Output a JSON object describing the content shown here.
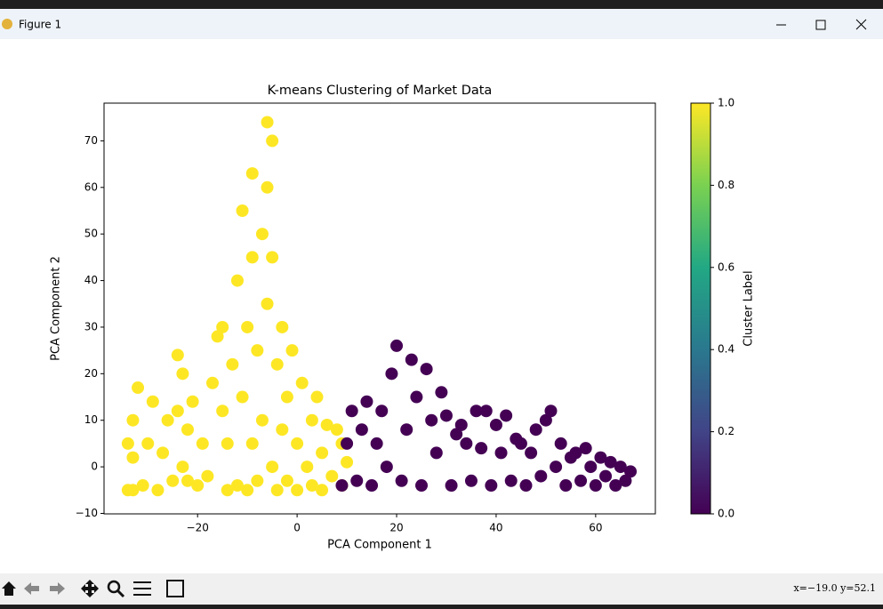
{
  "window": {
    "title": "Figure 1",
    "coordinates": "x=−19.0 y=52.1"
  },
  "chart_data": {
    "type": "scatter",
    "title": "K-means Clustering of Market Data",
    "x_label": "PCA Component 1",
    "y_label": "PCA Component 2",
    "xlim": [
      -38.8,
      72
    ],
    "ylim": [
      -10.1,
      78.1
    ],
    "xticks": [
      {
        "value": -20,
        "label": "−20"
      },
      0,
      20,
      40,
      60
    ],
    "yticks": [
      {
        "value": -10,
        "label": "−10"
      },
      0,
      10,
      20,
      30,
      40,
      50,
      60,
      70
    ],
    "series": [
      {
        "color": "#fde725",
        "x": [
          -34,
          -34,
          -33,
          -33,
          -33,
          -32,
          -31,
          -30,
          -29,
          -28,
          -27,
          -26,
          -25,
          -24,
          -24,
          -23,
          -23,
          -22,
          -22,
          -21,
          -20,
          -19,
          -18,
          -17,
          -16,
          -15,
          -15,
          -14,
          -14,
          -13,
          -12,
          -12,
          -11,
          -11,
          -10,
          -10,
          -9,
          -9,
          -9,
          -8,
          -8,
          -7,
          -7,
          -6,
          -6,
          -6,
          -5,
          -5,
          -5,
          -4,
          -4,
          -3,
          -3,
          -2,
          -2,
          -1,
          0,
          0,
          1,
          2,
          3,
          3,
          4,
          5,
          5,
          6,
          7,
          8,
          9,
          9,
          10
        ],
        "values": [
          -5,
          5,
          -5,
          2,
          10,
          17,
          -4,
          5,
          14,
          -5,
          3,
          10,
          -3,
          24,
          12,
          20,
          0,
          -3,
          8,
          14,
          -4,
          5,
          -2,
          18,
          28,
          30,
          12,
          -5,
          5,
          22,
          40,
          -4,
          55,
          15,
          30,
          -5,
          63,
          45,
          5,
          25,
          -3,
          50,
          10,
          74,
          60,
          35,
          70,
          45,
          0,
          22,
          -5,
          30,
          8,
          15,
          -3,
          25,
          5,
          -5,
          18,
          0,
          10,
          -4,
          15,
          3,
          -5,
          9,
          -2,
          8,
          -4,
          5,
          1
        ]
      },
      {
        "color": "#440154",
        "x": [
          9,
          10,
          11,
          12,
          13,
          14,
          15,
          16,
          17,
          18,
          19,
          20,
          21,
          22,
          23,
          24,
          25,
          26,
          27,
          28,
          29,
          30,
          31,
          32,
          33,
          34,
          35,
          36,
          37,
          38,
          39,
          40,
          41,
          42,
          43,
          44,
          45,
          46,
          47,
          48,
          49,
          50,
          51,
          52,
          53,
          54,
          55,
          56,
          57,
          58,
          59,
          60,
          61,
          62,
          63,
          64,
          65,
          66,
          67
        ],
        "values": [
          -4,
          5,
          12,
          -3,
          8,
          14,
          -4,
          5,
          12,
          0,
          20,
          26,
          -3,
          8,
          23,
          15,
          -4,
          21,
          10,
          3,
          16,
          11,
          -4,
          7,
          9,
          5,
          -3,
          12,
          4,
          12,
          -4,
          9,
          3,
          11,
          -3,
          6,
          5,
          -4,
          3,
          8,
          -2,
          10,
          12,
          0,
          5,
          -4,
          2,
          3,
          -3,
          4,
          0,
          -4,
          2,
          -2,
          1,
          -4,
          0,
          -3,
          -1
        ]
      }
    ],
    "colorbar": {
      "label": "Cluster Label",
      "lim": [
        0,
        1
      ],
      "ticks": [
        {
          "value": 0,
          "label": "0.0"
        },
        {
          "value": 0.2,
          "label": "0.2"
        },
        {
          "value": 0.4,
          "label": "0.4"
        },
        {
          "value": 0.6,
          "label": "0.6"
        },
        {
          "value": 0.8,
          "label": "0.8"
        },
        {
          "value": 1,
          "label": "1.0"
        }
      ],
      "colors": [
        "#440154",
        "#414487",
        "#2a788e",
        "#22a884",
        "#7ad151",
        "#fde725"
      ]
    }
  }
}
